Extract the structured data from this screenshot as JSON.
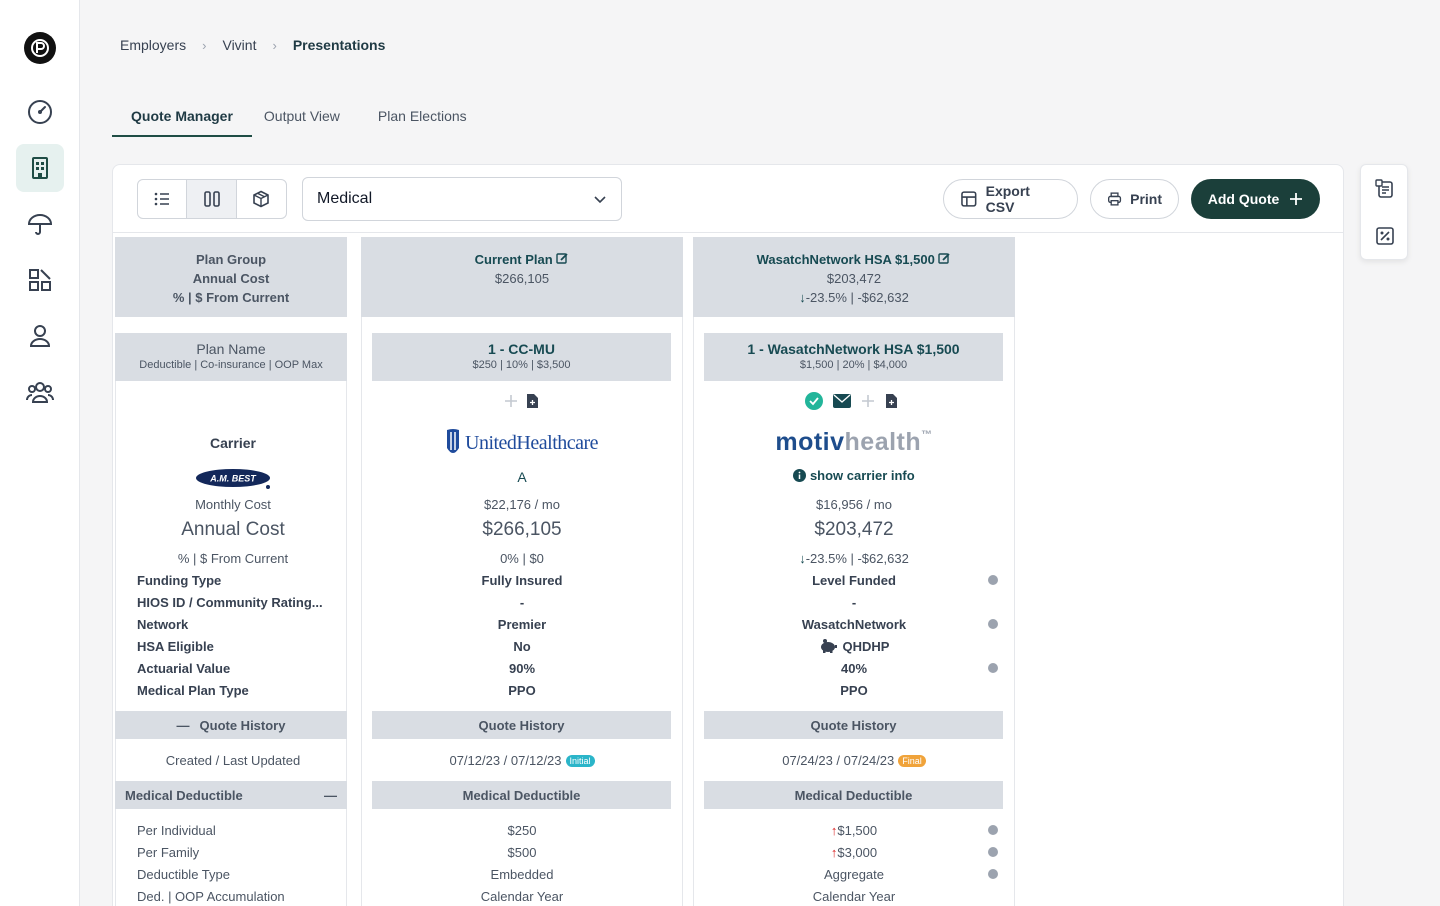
{
  "breadcrumb": [
    "Employers",
    "Vivint",
    "Presentations"
  ],
  "tabs": [
    "Quote Manager",
    "Output View",
    "Plan Elections"
  ],
  "toolbar": {
    "plan_type": "Medical",
    "export_label": "Export CSV",
    "print_label": "Print",
    "add_quote_label": "Add Quote"
  },
  "labels_col": {
    "head": [
      "Plan Group",
      "Annual Cost",
      "% | $ From Current"
    ],
    "plan_name": "Plan Name",
    "plan_name_sub": "Deductible | Co-insurance | OOP Max",
    "carrier": "Carrier",
    "best_logo": "A.M. BEST",
    "monthly_cost": "Monthly Cost",
    "annual_cost": "Annual Cost",
    "from_current": "% | $ From Current",
    "fields": [
      "Funding Type",
      "HIOS ID / Community Rating...",
      "Network",
      "HSA Eligible",
      "Actuarial Value",
      "Medical Plan Type"
    ],
    "quote_history": "Quote History",
    "created_updated": "Created / Last Updated",
    "medical_deductible": "Medical Deductible",
    "deductible_fields": [
      "Per Individual",
      "Per Family",
      "Deductible Type",
      "Ded. | OOP Accumulation"
    ]
  },
  "current_plan": {
    "title": "Current Plan",
    "annual": "$266,105",
    "plan_name": "1 - CC-MU",
    "plan_sub": "$250 | 10% | $3,500",
    "carrier_logo": "UnitedHealthcare",
    "rating": "A",
    "monthly": "$22,176 / mo",
    "annual_big": "$266,105",
    "from_current": "0% | $0",
    "fields": [
      "Fully Insured",
      "-",
      "Premier",
      "No",
      "90%",
      "PPO"
    ],
    "quote_history": "Quote History",
    "dates": "07/12/23 / 07/12/23",
    "badge": "Initial",
    "medical_deductible": "Medical Deductible",
    "deductible": [
      "$250",
      "$500",
      "Embedded",
      "Calendar Year"
    ]
  },
  "wasatch_plan": {
    "title": "WasatchNetwork HSA $1,500",
    "annual": "$203,472",
    "delta": "-23.5% | -$62,632",
    "plan_name": "1 - WasatchNetwork HSA $1,500",
    "plan_sub": "$1,500 | 20% | $4,000",
    "carrier_logo_a": "motiv",
    "carrier_logo_b": "health",
    "carrier_logo_tm": "™",
    "carrier_info": "show carrier info",
    "monthly": "$16,956 / mo",
    "annual_big": "$203,472",
    "from_current": "-23.5% | -$62,632",
    "fields": [
      "Level Funded",
      "-",
      "WasatchNetwork",
      "QHDHP",
      "40%",
      "PPO"
    ],
    "quote_history": "Quote History",
    "dates": "07/24/23 / 07/24/23",
    "badge": "Final",
    "medical_deductible": "Medical Deductible",
    "deductible": [
      "$1,500",
      "$3,000",
      "Aggregate",
      "Calendar Year"
    ]
  },
  "colors": {
    "accent": "#1b3f3a",
    "header_bg": "#d9dde3",
    "initial_badge": "#2bb5c9",
    "final_badge": "#f0a33a",
    "increase": "#dc2626"
  }
}
